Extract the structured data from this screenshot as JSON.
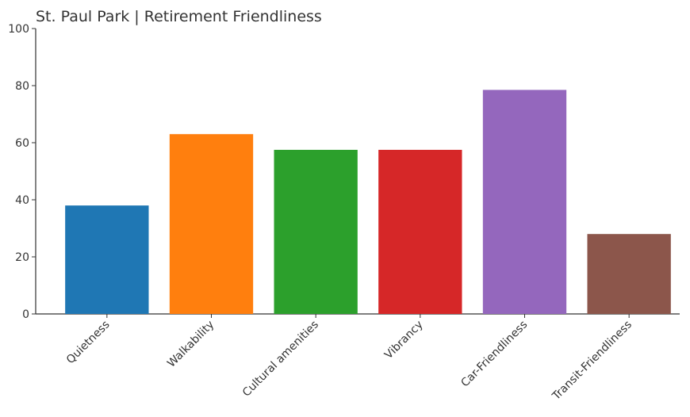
{
  "chart_data": {
    "type": "bar",
    "title": "St. Paul Park | Retirement Friendliness",
    "categories": [
      "Quietness",
      "Walkability",
      "Cultural amenities",
      "Vibrancy",
      "Car-Friendliness",
      "Transit-Friendliness"
    ],
    "values": [
      38,
      63,
      57.5,
      57.5,
      78.5,
      28
    ],
    "colors": [
      "#1f77b4",
      "#ff7f0e",
      "#2ca02c",
      "#d62728",
      "#9467bd",
      "#8c564b"
    ],
    "ylim": [
      0,
      100
    ],
    "yticks": [
      0,
      20,
      40,
      60,
      80,
      100
    ],
    "grid": false
  }
}
